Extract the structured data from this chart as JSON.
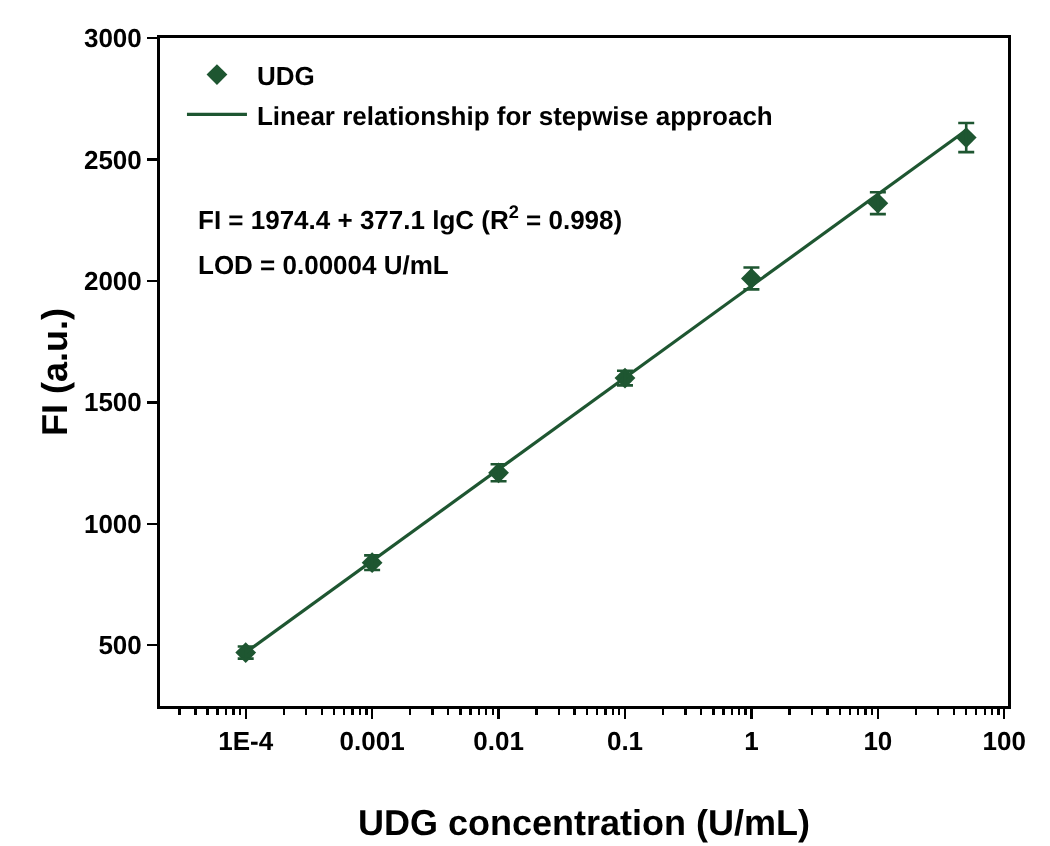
{
  "chart_data": {
    "type": "scatter",
    "xlabel": "UDG concentration (U/mL)",
    "ylabel": "FI (a.u.)",
    "log": "x",
    "legend": "top left",
    "grid": false,
    "xlim": [
      2.1e-05,
      107
    ],
    "xticks": [
      {
        "value": 0.0001,
        "label": "1E-4"
      },
      0.001,
      0.01,
      0.1,
      1,
      10,
      100
    ],
    "ylim": [
      250,
      3000
    ],
    "yticks": [
      500,
      1000,
      1500,
      2000,
      2500,
      3000
    ],
    "series": [
      {
        "name": "UDG",
        "color": "#1e5631",
        "x": [
          0.0001,
          0.001,
          0.01,
          0.1,
          1,
          10,
          50
        ],
        "values": [
          470,
          840,
          1210,
          1600,
          2010,
          2320,
          2590
        ],
        "errors": [
          25,
          30,
          35,
          30,
          45,
          45,
          60
        ]
      },
      {
        "name": "Linear relationship for stepwise approach",
        "type": "line",
        "color": "#1e5631",
        "x": [
          0.0001,
          50
        ],
        "values": [
          470,
          2620
        ],
        "line_style": "solid"
      }
    ],
    "annotations": [
      "FI = 1974.4 + 377.1 lgC (R$^{2}$ = 0.998)",
      "LOD = 0.00004 U/mL"
    ]
  }
}
